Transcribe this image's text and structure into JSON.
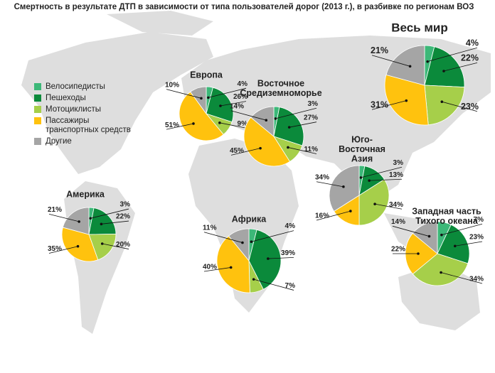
{
  "title": "Смертность в результате ДТП в зависимости от типа пользователей дорог (2013 г.), в разбивке по регионам ВОЗ",
  "legend": {
    "labels": [
      "Велосипедисты",
      "Пешеходы",
      "Мотоциклисты",
      "Пассажиры транспортных средств",
      "Другие"
    ],
    "colors": [
      "#3cb878",
      "#0b8a3b",
      "#a6cf4a",
      "#ffc20e",
      "#a5a5a5"
    ]
  },
  "chart_data": [
    {
      "type": "pie",
      "title": [
        "Весь мир"
      ],
      "values": [
        4,
        22,
        23,
        31,
        21
      ],
      "value_labels": [
        "4%",
        "22%",
        "23%",
        "31%",
        "21%"
      ]
    },
    {
      "type": "pie",
      "title": [
        "Европа"
      ],
      "values": [
        4,
        26,
        9,
        51,
        10
      ],
      "value_labels": [
        "4%",
        "26%",
        "9%",
        "51%",
        "10%"
      ]
    },
    {
      "type": "pie",
      "title": [
        "Восточное",
        "Средиземноморье"
      ],
      "values": [
        3,
        27,
        11,
        45,
        14
      ],
      "value_labels": [
        "3%",
        "27%",
        "11%",
        "45%",
        "14%"
      ]
    },
    {
      "type": "pie",
      "title": [
        "Юго-",
        "Восточная",
        "Азия"
      ],
      "values": [
        3,
        13,
        34,
        16,
        34
      ],
      "value_labels": [
        "3%",
        "13%",
        "34%",
        "16%",
        "34%"
      ]
    },
    {
      "type": "pie",
      "title": [
        "Америка"
      ],
      "values": [
        3,
        22,
        20,
        35,
        21
      ],
      "value_labels": [
        "3%",
        "22%",
        "20%",
        "35%",
        "21%"
      ]
    },
    {
      "type": "pie",
      "title": [
        "Африка"
      ],
      "values": [
        4,
        39,
        7,
        40,
        11
      ],
      "value_labels": [
        "4%",
        "39%",
        "7%",
        "40%",
        "11%"
      ]
    },
    {
      "type": "pie",
      "title": [
        "Западная часть",
        "Тихого океана"
      ],
      "values": [
        7,
        23,
        34,
        22,
        14
      ],
      "value_labels": [
        "7%",
        "23%",
        "34%",
        "22%",
        "14%"
      ]
    }
  ]
}
